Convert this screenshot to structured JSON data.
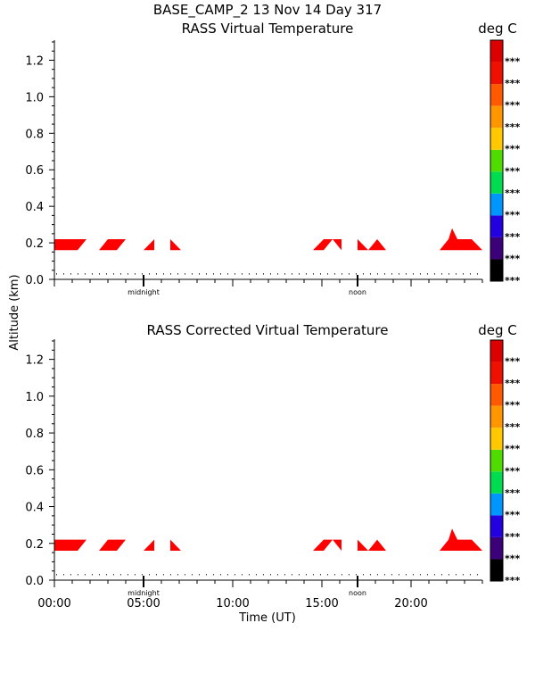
{
  "header": {
    "title": "BASE_CAMP_2  13 Nov 14 Day 317"
  },
  "axes": {
    "ylabel": "Altitude (km)",
    "xlabel": "Time (UT)",
    "yticks": [
      "0.0",
      "0.2",
      "0.4",
      "0.6",
      "0.8",
      "1.0",
      "1.2"
    ],
    "xticks": [
      "00:00",
      "05:00",
      "10:00",
      "15:00",
      "20:00"
    ],
    "markers": [
      "midnight",
      "noon"
    ]
  },
  "colors": {
    "ramp": [
      "#000000",
      "#3c0078",
      "#2200e0",
      "#0096ff",
      "#00dc50",
      "#50dc00",
      "#ffc800",
      "#ff9600",
      "#ff5a00",
      "#f01000",
      "#dc0000"
    ],
    "data_fill": "#ff0000"
  },
  "chart_data": [
    {
      "type": "heatmap",
      "title": "RASS Virtual Temperature",
      "units": "deg C",
      "xlabel": "",
      "ylabel": "Altitude (km)",
      "xlim": [
        0,
        24
      ],
      "ylim": [
        0,
        1.3
      ],
      "colorbar_labels": [
        "***",
        "***",
        "***",
        "***",
        "***",
        "***",
        "***",
        "***",
        "***",
        "***",
        "***"
      ],
      "reference_altitude_km": 0.03,
      "markers": [
        {
          "label": "midnight",
          "x": 5.0
        },
        {
          "label": "noon",
          "x": 17.0
        }
      ],
      "regions": [
        {
          "x": [
            0.0,
            1.3,
            1.8,
            0.0
          ],
          "y": [
            0.16,
            0.16,
            0.22,
            0.22
          ]
        },
        {
          "x": [
            2.5,
            3.0,
            4.0,
            3.5
          ],
          "y": [
            0.16,
            0.22,
            0.22,
            0.16
          ]
        },
        {
          "x": [
            5.0,
            5.6,
            5.6
          ],
          "y": [
            0.16,
            0.16,
            0.22
          ]
        },
        {
          "x": [
            6.5,
            7.1,
            6.5
          ],
          "y": [
            0.16,
            0.16,
            0.22
          ]
        },
        {
          "x": [
            14.5,
            15.1,
            15.6,
            15.1
          ],
          "y": [
            0.16,
            0.22,
            0.22,
            0.16
          ]
        },
        {
          "x": [
            15.6,
            16.1,
            16.1
          ],
          "y": [
            0.22,
            0.16,
            0.22
          ]
        },
        {
          "x": [
            17.0,
            17.6,
            17.0
          ],
          "y": [
            0.16,
            0.16,
            0.22
          ]
        },
        {
          "x": [
            17.6,
            18.1,
            18.6
          ],
          "y": [
            0.16,
            0.22,
            0.16
          ]
        },
        {
          "x": [
            21.6,
            22.1,
            22.3,
            22.6,
            23.4,
            24.0,
            21.6
          ],
          "y": [
            0.16,
            0.22,
            0.28,
            0.22,
            0.22,
            0.16,
            0.16
          ]
        }
      ]
    },
    {
      "type": "heatmap",
      "title": "RASS Corrected Virtual Temperature",
      "units": "deg C",
      "xlabel": "Time (UT)",
      "ylabel": "Altitude (km)",
      "xlim": [
        0,
        24
      ],
      "ylim": [
        0,
        1.3
      ],
      "colorbar_labels": [
        "***",
        "***",
        "***",
        "***",
        "***",
        "***",
        "***",
        "***",
        "***",
        "***",
        "***"
      ],
      "reference_altitude_km": 0.03,
      "markers": [
        {
          "label": "midnight",
          "x": 5.0
        },
        {
          "label": "noon",
          "x": 17.0
        }
      ],
      "regions": [
        {
          "x": [
            0.0,
            1.3,
            1.8,
            0.0
          ],
          "y": [
            0.16,
            0.16,
            0.22,
            0.22
          ]
        },
        {
          "x": [
            2.5,
            3.0,
            4.0,
            3.5
          ],
          "y": [
            0.16,
            0.22,
            0.22,
            0.16
          ]
        },
        {
          "x": [
            5.0,
            5.6,
            5.6
          ],
          "y": [
            0.16,
            0.16,
            0.22
          ]
        },
        {
          "x": [
            6.5,
            7.1,
            6.5
          ],
          "y": [
            0.16,
            0.16,
            0.22
          ]
        },
        {
          "x": [
            14.5,
            15.1,
            15.6,
            15.1
          ],
          "y": [
            0.16,
            0.22,
            0.22,
            0.16
          ]
        },
        {
          "x": [
            15.6,
            16.1,
            16.1
          ],
          "y": [
            0.22,
            0.16,
            0.22
          ]
        },
        {
          "x": [
            17.0,
            17.6,
            17.0
          ],
          "y": [
            0.16,
            0.16,
            0.22
          ]
        },
        {
          "x": [
            17.6,
            18.1,
            18.6
          ],
          "y": [
            0.16,
            0.22,
            0.16
          ]
        },
        {
          "x": [
            21.6,
            22.1,
            22.3,
            22.6,
            23.4,
            24.0,
            21.6
          ],
          "y": [
            0.16,
            0.22,
            0.28,
            0.22,
            0.22,
            0.16,
            0.16
          ]
        }
      ]
    }
  ]
}
